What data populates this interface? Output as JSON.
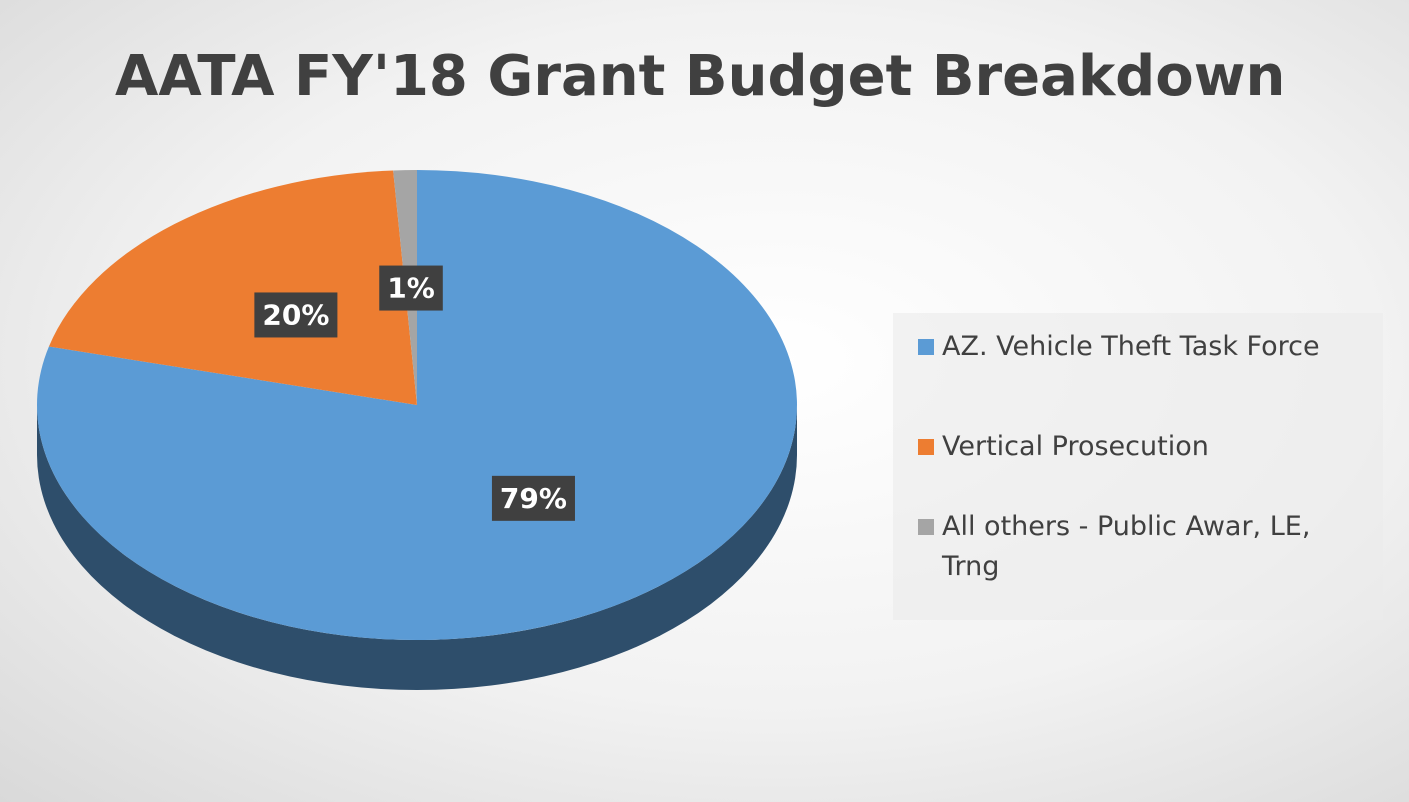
{
  "chart_data": {
    "type": "pie",
    "title": "AATA FY'18 Grant Budget Breakdown",
    "categories": [
      "AZ. Vehicle Theft Task Force",
      "Vertical Prosecution",
      "All others - Public Awar, LE, Trng"
    ],
    "values": [
      79,
      20,
      1
    ],
    "value_labels": [
      "79%",
      "20%",
      "1%"
    ],
    "colors": [
      "#5b9bd5",
      "#ed7d31",
      "#a5a5a5"
    ],
    "legend": "right"
  }
}
